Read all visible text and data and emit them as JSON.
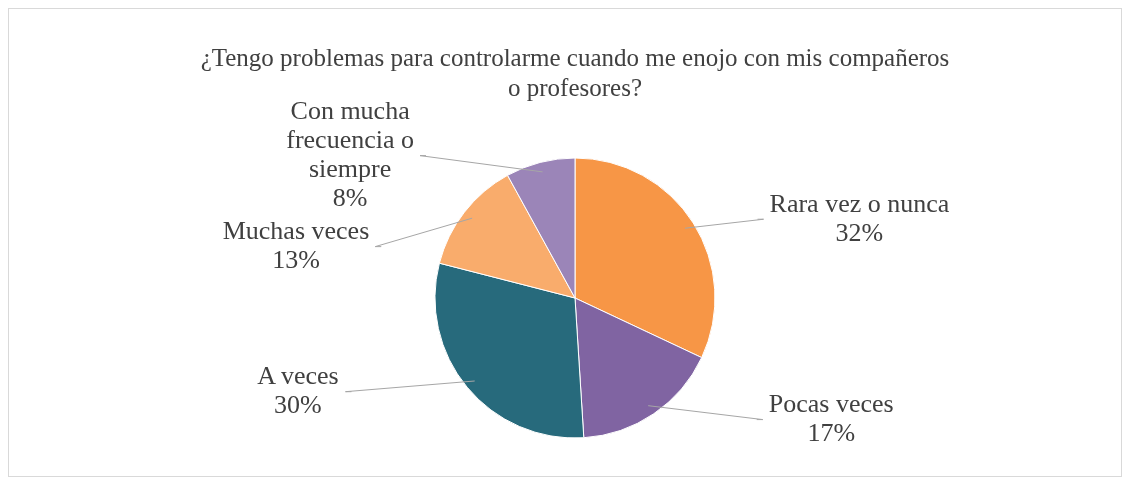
{
  "chart_data": {
    "type": "pie",
    "title": "¿Tengo problemas para controlarme cuando me enojo con mis compañeros o profesores?",
    "categories": [
      "Rara vez o nunca",
      "Pocas veces",
      "A veces",
      "Muchas veces",
      "Con mucha frecuencia o siempre"
    ],
    "values": [
      32,
      17,
      30,
      13,
      8
    ],
    "value_labels": [
      "32%",
      "17%",
      "30%",
      "13%",
      "8%"
    ],
    "colors": [
      "#f79646",
      "#8064a2",
      "#276a7c",
      "#f9ac6c",
      "#9b85b8"
    ],
    "legend": false
  }
}
